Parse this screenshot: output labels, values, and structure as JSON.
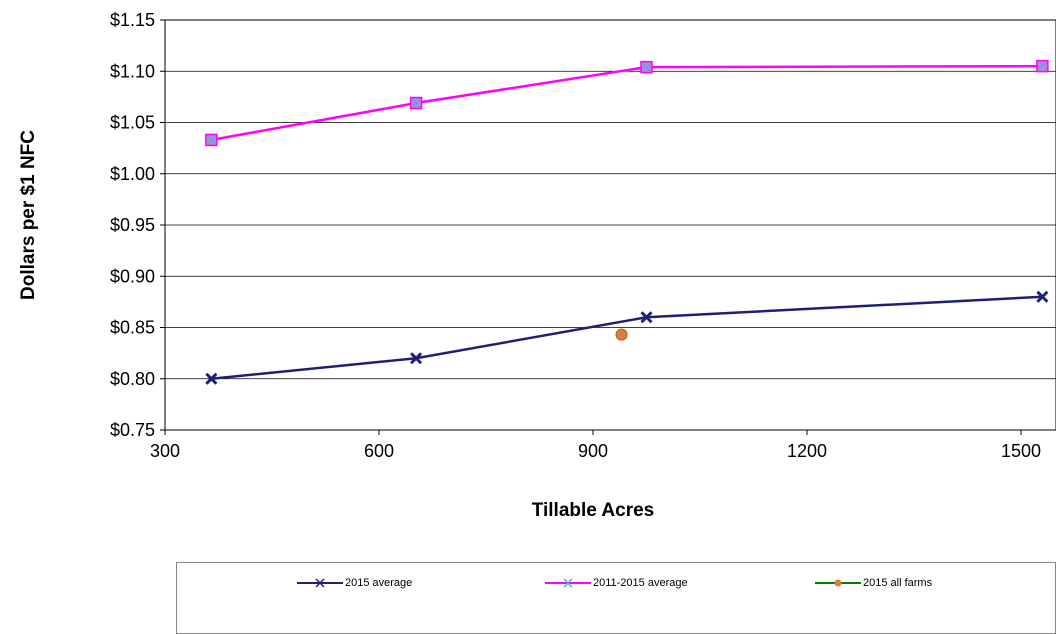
{
  "chart_data": {
    "type": "line",
    "xlabel": "Tillable Acres",
    "ylabel": "Dollars per $1 NFC",
    "xlim": [
      300,
      1500
    ],
    "ylim": [
      0.75,
      1.15
    ],
    "x_ticks": [
      "300",
      "600",
      "900",
      "1200",
      "1500"
    ],
    "y_ticks": [
      "$0.75",
      "$0.80",
      "$0.85",
      "$0.90",
      "$0.95",
      "$1.00",
      "$1.05",
      "$1.10",
      "$1.15"
    ],
    "grid": "horizontal",
    "legend_position": "bottom",
    "series": [
      {
        "name": "2015 average",
        "color": "#1f1f7a",
        "marker": "x",
        "x": [
          365,
          652,
          975,
          1530
        ],
        "y": [
          0.8,
          0.82,
          0.86,
          0.88
        ]
      },
      {
        "name": "2011-2015 average",
        "color": "#ff00ff",
        "marker": "square",
        "x": [
          365,
          652,
          975,
          1530
        ],
        "y": [
          1.033,
          1.069,
          1.104,
          1.105
        ]
      },
      {
        "name": "2015 all farms",
        "color": "#008000",
        "marker": "circle",
        "marker_color": "#e07b39",
        "x": [
          940
        ],
        "y": [
          0.843
        ]
      }
    ]
  }
}
